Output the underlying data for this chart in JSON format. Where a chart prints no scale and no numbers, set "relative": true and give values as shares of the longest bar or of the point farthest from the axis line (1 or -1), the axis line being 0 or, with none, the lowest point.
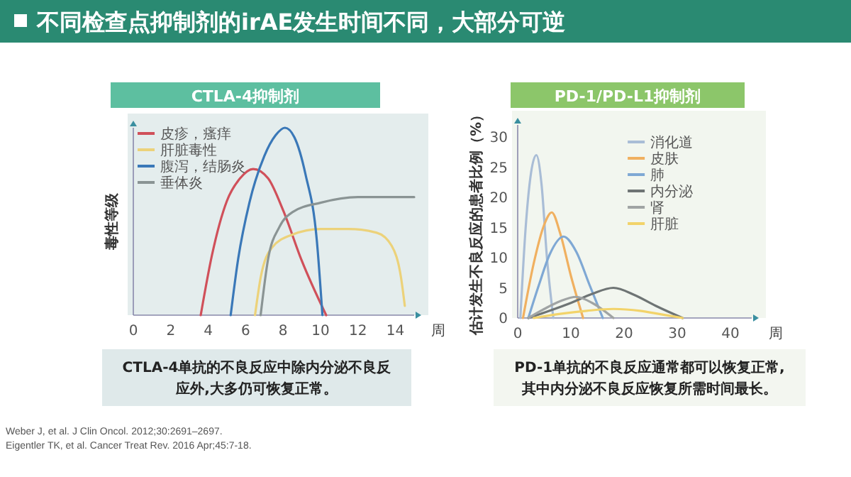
{
  "chart_data": [
    {
      "type": "line",
      "title": "CTLA-4抑制剂",
      "xlabel": "周",
      "ylabel": "毒性等级",
      "relative": true,
      "xlim": [
        0,
        15
      ],
      "xticks": [
        0,
        2,
        4,
        6,
        8,
        10,
        12,
        14
      ],
      "legend": "top left",
      "grid": false,
      "annotations": [
        "不同检查点抑制剂的irAE发生时间不同，大部分可逆",
        "CTLA-4单抗的不良反应中除内分泌不良反应外,大多仍可恢复正常。"
      ],
      "series": [
        {
          "name": "皮疹，瘙痒",
          "color": "#d0505a",
          "x": [
            3.6,
            4.2,
            5,
            5.7,
            6.4,
            7.2,
            8,
            9,
            10.3
          ],
          "values": [
            0,
            0.32,
            0.61,
            0.73,
            0.78,
            0.73,
            0.56,
            0.29,
            0
          ]
        },
        {
          "name": "肝脏毒性",
          "color": "#ecd27a",
          "x": [
            6.5,
            6.8,
            7.4,
            8.5,
            10,
            11.5,
            13,
            13.8,
            14.3,
            14.5
          ],
          "values": [
            0,
            0.2,
            0.36,
            0.43,
            0.46,
            0.46,
            0.44,
            0.37,
            0.2,
            0.05
          ]
        },
        {
          "name": "腹泻，结肠炎",
          "color": "#3a78b8",
          "x": [
            5.2,
            5.6,
            6.2,
            7,
            7.6,
            8.1,
            8.6,
            9.2,
            9.8,
            10.1
          ],
          "values": [
            0,
            0.3,
            0.6,
            0.85,
            0.96,
            1,
            0.95,
            0.75,
            0.4,
            0
          ]
        },
        {
          "name": "垂体炎",
          "color": "#8a9494",
          "x": [
            6.8,
            7.2,
            7.8,
            8.5,
            10,
            12,
            15
          ],
          "values": [
            0,
            0.3,
            0.47,
            0.55,
            0.6,
            0.63,
            0.63
          ]
        }
      ]
    },
    {
      "type": "line",
      "title": "PD-1/PD-L1抑制剂",
      "xlabel": "周",
      "ylabel": "估计发生不良反应的患者比例（%）",
      "xlim": [
        0,
        44
      ],
      "xticks": [
        0,
        10,
        20,
        30,
        40
      ],
      "ylim": [
        0,
        32
      ],
      "yticks": [
        0,
        5,
        10,
        15,
        20,
        25,
        30
      ],
      "legend": "top right",
      "grid": false,
      "annotations": [
        "PD-1单抗的不良反应通常都可以恢复正常,其中内分泌不良反应恢复所需时间最长。",
        "Weber J, et al. J Clin Oncol. 2012;30:2691–2697.",
        "Eigentler TK, et al. Cancer Treat Rev. 2016 Apr;45:7-18."
      ],
      "series": [
        {
          "name": "消化道",
          "color": "#a9bdd6",
          "x": [
            0.5,
            1.5,
            2.5,
            3.5,
            4.5,
            5.5,
            6.7
          ],
          "values": [
            0,
            15,
            24,
            27,
            22,
            10,
            0
          ]
        },
        {
          "name": "皮肤",
          "color": "#f0b060",
          "x": [
            1,
            3,
            5,
            6.4,
            8,
            10,
            12.3
          ],
          "values": [
            0,
            9,
            15.5,
            17.5,
            14,
            7,
            0
          ]
        },
        {
          "name": "肺",
          "color": "#7fa8d4",
          "x": [
            2,
            4,
            6,
            8.6,
            11,
            13.5,
            16
          ],
          "values": [
            0,
            5.5,
            10.5,
            13.5,
            11,
            5.5,
            0
          ]
        },
        {
          "name": "内分泌",
          "color": "#6e7474",
          "x": [
            2,
            6,
            10,
            14,
            18,
            22,
            26,
            31
          ],
          "values": [
            0,
            1.2,
            2.5,
            4,
            5,
            3.8,
            2,
            0
          ]
        },
        {
          "name": "肾",
          "color": "#a0a4a4",
          "x": [
            2,
            5,
            8,
            11,
            14,
            18
          ],
          "values": [
            0,
            1.5,
            2.8,
            3.5,
            2.5,
            0
          ]
        },
        {
          "name": "肝脏",
          "color": "#f2d36a",
          "x": [
            3,
            8,
            13,
            18,
            23,
            27,
            31
          ],
          "values": [
            0,
            0.7,
            1.2,
            1.5,
            1.2,
            0.6,
            0
          ]
        }
      ]
    }
  ]
}
